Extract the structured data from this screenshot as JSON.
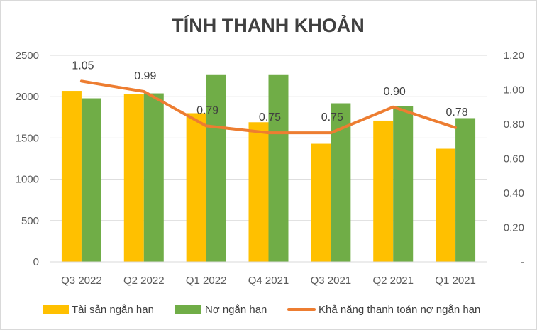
{
  "chart_data": {
    "type": "bar",
    "title": "TÍNH THANH KHOẢN",
    "categories": [
      "Q3 2022",
      "Q2 2022",
      "Q1 2022",
      "Q4 2021",
      "Q3 2021",
      "Q2 2021",
      "Q1 2021"
    ],
    "series": [
      {
        "name": "Tài sản ngắn hạn",
        "type": "bar",
        "axis": "left",
        "color": "#FFC000",
        "values": [
          2070,
          2030,
          1800,
          1690,
          1430,
          1710,
          1370
        ]
      },
      {
        "name": "Nợ ngắn hạn",
        "type": "bar",
        "axis": "left",
        "color": "#70AD47",
        "values": [
          1980,
          2040,
          2270,
          2270,
          1920,
          1890,
          1740
        ]
      },
      {
        "name": "Khả năng thanh toán nợ ngắn hạn",
        "type": "line",
        "axis": "right",
        "color": "#ED7D31",
        "values": [
          1.05,
          0.99,
          0.79,
          0.75,
          0.75,
          0.9,
          0.78
        ],
        "labels": [
          "1.05",
          "0.99",
          "0.79",
          "0.75",
          "0.75",
          "0.90",
          "0.78"
        ]
      }
    ],
    "y_left": {
      "ylim": [
        0,
        2500
      ],
      "ticks": [
        "0",
        "500",
        "1000",
        "1500",
        "2000",
        "2500"
      ]
    },
    "y_right": {
      "ylim": [
        0,
        1.2
      ],
      "ticks": [
        "-",
        "0.20",
        "0.40",
        "0.60",
        "0.80",
        "1.00",
        "1.20"
      ]
    },
    "grid": true,
    "legend_position": "bottom"
  }
}
